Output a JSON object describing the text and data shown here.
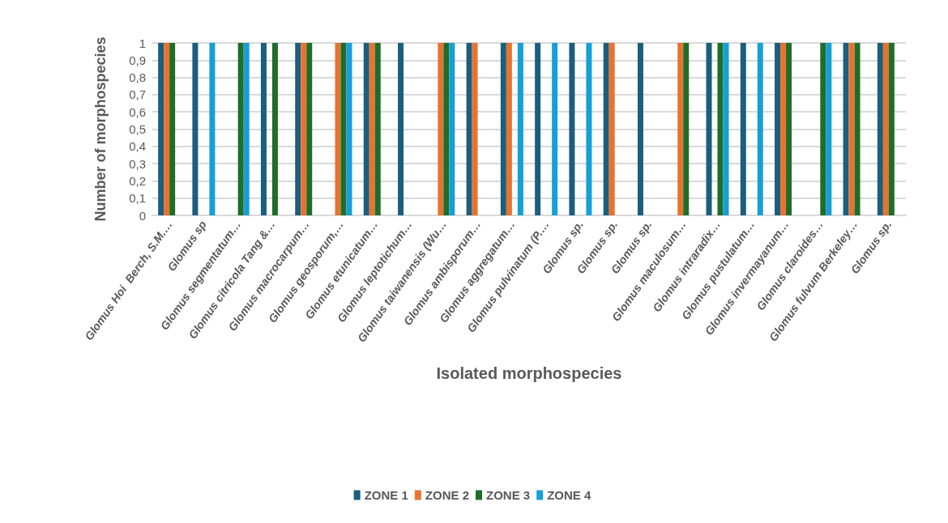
{
  "chart_data": {
    "type": "bar",
    "xlabel": "Isolated morphospecies",
    "ylabel": "Number of morphospecies",
    "categories": [
      "Glomus Hoi  Berch, S.M.…",
      "Glomus sp",
      "Glomus segmentatum…",
      "Glomus citricola Tang &…",
      "Glomus macrocarpum…",
      "Glomus geosporum,…",
      "Glomus etunicatum…",
      "Glomus leptotichum…",
      "Glomus taiwanensis (Wu…",
      "Glomus ambisporum…",
      "Glomus aggregatum…",
      "Glomus pulvinatum (P.…",
      "Glomus sp.",
      "Glomus sp.",
      "Glomus sp.",
      "Glomus maculosum…",
      "Glomus intraradix…",
      "Glomus pustulatum…",
      "Glomus invermayanum…",
      "Glomus claroides…",
      "Glomus fulvum Berkeley…",
      "Glomus sp."
    ],
    "series": [
      {
        "name": "ZONE 1",
        "color": "#1b5e7e",
        "values": [
          1,
          1,
          0,
          1,
          1,
          0,
          1,
          1,
          0,
          1,
          1,
          1,
          1,
          1,
          1,
          0,
          1,
          1,
          1,
          0,
          1,
          1
        ]
      },
      {
        "name": "ZONE 2",
        "color": "#e87330",
        "values": [
          1,
          0,
          0,
          0,
          1,
          1,
          1,
          0,
          1,
          1,
          1,
          0,
          0,
          1,
          0,
          1,
          0,
          0,
          1,
          0,
          1,
          1
        ]
      },
      {
        "name": "ZONE 3",
        "color": "#1e6e2a",
        "values": [
          1,
          0,
          1,
          1,
          1,
          1,
          1,
          0,
          1,
          0,
          0,
          0,
          0,
          0,
          0,
          1,
          1,
          0,
          1,
          1,
          1,
          1
        ]
      },
      {
        "name": "ZONE 4",
        "color": "#169fd6",
        "values": [
          0,
          1,
          1,
          0,
          0,
          1,
          0,
          0,
          1,
          0,
          1,
          1,
          1,
          0,
          0,
          0,
          1,
          1,
          0,
          1,
          0,
          0
        ]
      }
    ],
    "ylim": [
      0,
      1
    ],
    "yticks": [
      0,
      {
        "value": 0.1,
        "label": "0,1"
      },
      {
        "value": 0.2,
        "label": "0,2"
      },
      {
        "value": 0.3,
        "label": "0,3"
      },
      {
        "value": 0.4,
        "label": "0,4"
      },
      {
        "value": 0.5,
        "label": "0,5"
      },
      {
        "value": 0.6,
        "label": "0,6"
      },
      {
        "value": 0.7,
        "label": "0,7"
      },
      {
        "value": 0.8,
        "label": "0,8"
      },
      {
        "value": 0.9,
        "label": "0,9"
      },
      1
    ],
    "grid": "y",
    "legend": "bottom"
  }
}
